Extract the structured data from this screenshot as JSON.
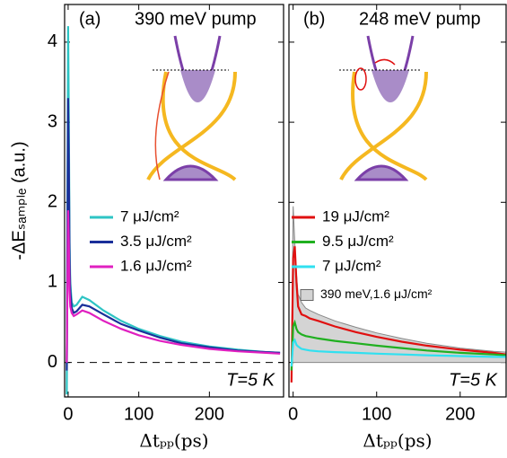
{
  "chart_data": [
    {
      "type": "line",
      "panel_label": "(a)",
      "title": "390 meV pump",
      "annotation": "T=5 K",
      "y_label": "-ΔEₛₐₘₚₗₑ (a.u.)",
      "x_label": "Δtₚₚ(ps)",
      "xlim": [
        -5,
        305
      ],
      "xticks": [
        0,
        100,
        200
      ],
      "ylim": [
        -0.43,
        4.47
      ],
      "yticks": [
        0,
        1,
        2,
        3,
        4
      ],
      "x": [
        -2,
        0,
        1,
        2,
        3,
        5,
        8,
        12,
        20,
        30,
        50,
        75,
        100,
        130,
        160,
        200,
        240,
        280,
        300
      ],
      "series": [
        {
          "name": "7 μJ/cm²",
          "color": "#2ec4c4",
          "values": [
            -0.4,
            4.2,
            3.0,
            1.5,
            1.0,
            0.75,
            0.7,
            0.72,
            0.82,
            0.78,
            0.65,
            0.52,
            0.42,
            0.33,
            0.26,
            0.2,
            0.16,
            0.13,
            0.12
          ]
        },
        {
          "name": "3.5 μJ/cm²",
          "color": "#1a2f9a",
          "values": [
            -0.1,
            3.3,
            2.5,
            1.3,
            0.9,
            0.68,
            0.62,
            0.64,
            0.72,
            0.7,
            0.6,
            0.48,
            0.4,
            0.31,
            0.24,
            0.19,
            0.15,
            0.13,
            0.12
          ]
        },
        {
          "name": "1.6 μJ/cm²",
          "color": "#e020c0",
          "values": [
            0,
            1.9,
            1.5,
            0.9,
            0.7,
            0.62,
            0.58,
            0.6,
            0.65,
            0.62,
            0.52,
            0.42,
            0.34,
            0.27,
            0.22,
            0.17,
            0.14,
            0.12,
            0.11
          ]
        }
      ]
    },
    {
      "type": "line",
      "panel_label": "(b)",
      "title": "248 meV pump",
      "annotation": "T=5 K",
      "x_label": "Δtₚₚ(ps)",
      "xlim": [
        -5,
        255
      ],
      "xticks": [
        0,
        100,
        200
      ],
      "ylim": [
        -0.43,
        4.47
      ],
      "x": [
        -2,
        0,
        2,
        4,
        6,
        10,
        15,
        20,
        30,
        50,
        75,
        100,
        130,
        160,
        200,
        240,
        255
      ],
      "series": [
        {
          "name": "390 meV,1.6 μJ/cm²",
          "color": "#d4d4d4",
          "style": "area",
          "values": [
            0,
            1.95,
            1.5,
            1.1,
            0.85,
            0.75,
            0.68,
            0.65,
            0.6,
            0.52,
            0.44,
            0.37,
            0.3,
            0.24,
            0.18,
            0.14,
            0.13
          ]
        },
        {
          "name": "19 μJ/cm²",
          "color": "#e01010",
          "values": [
            -0.25,
            1.3,
            1.45,
            1.0,
            0.7,
            0.6,
            0.58,
            0.55,
            0.52,
            0.45,
            0.38,
            0.32,
            0.26,
            0.21,
            0.16,
            0.12,
            0.1
          ]
        },
        {
          "name": "9.5 μJ/cm²",
          "color": "#20b020",
          "values": [
            -0.1,
            0.45,
            0.5,
            0.42,
            0.38,
            0.35,
            0.33,
            0.32,
            0.3,
            0.27,
            0.24,
            0.21,
            0.18,
            0.15,
            0.12,
            0.1,
            0.09
          ]
        },
        {
          "name": "7 μJ/cm²",
          "color": "#30e0f0",
          "values": [
            -0.05,
            0.25,
            0.28,
            0.22,
            0.2,
            0.17,
            0.16,
            0.15,
            0.14,
            0.13,
            0.12,
            0.11,
            0.1,
            0.09,
            0.08,
            0.07,
            0.07
          ]
        }
      ]
    }
  ]
}
